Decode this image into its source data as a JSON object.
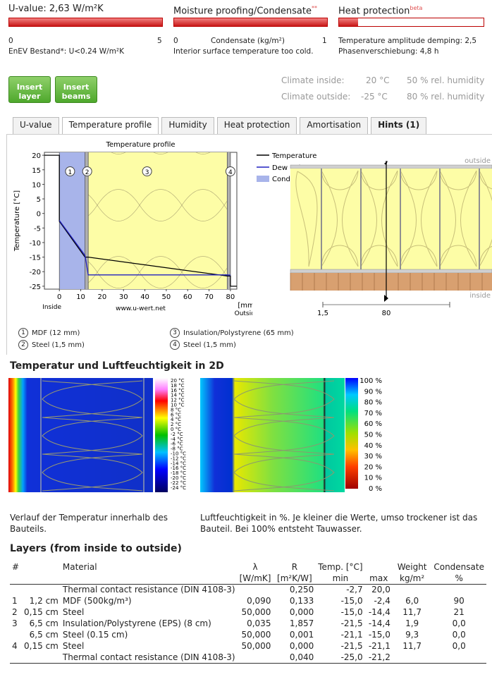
{
  "header": {
    "uvalue": {
      "title": "U-value: 2,63 W/m²K",
      "scale_min": "0",
      "scale_max": "5",
      "note": "EnEV Bestand*: U<0.24 W/m²K"
    },
    "moisture": {
      "title": "Moisture proofing/Condensate",
      "title_sup": "**",
      "scale_min": "0",
      "scale_mid": "Condensate (kg/m²)",
      "scale_max": "1",
      "note": "Interior surface temperature too cold."
    },
    "heat": {
      "title": "Heat protection",
      "title_sup": "beta",
      "line1": "Temperature amplitude demping: 2,5",
      "line2": "Phasenverschiebung: 4,8 h"
    }
  },
  "buttons": {
    "insert_layer": "Insert layer",
    "insert_beams": "Insert beams"
  },
  "climate": {
    "inside_label": "Climate inside:",
    "inside_temp": "20 °C",
    "inside_hum": "50 % rel. humidity",
    "outside_label": "Climate outside:",
    "outside_temp": "-25 °C",
    "outside_hum": "80 % rel. humidity"
  },
  "tabs": [
    "U-value",
    "Temperature profile",
    "Humidity",
    "Heat protection",
    "Amortisation",
    "Hints (1)"
  ],
  "chart_data": {
    "type": "line",
    "title": "Temperature profile",
    "xlabel": "[mm]",
    "ylabel": "Temperature [°C]",
    "xlim": [
      -7,
      83
    ],
    "ylim": [
      -26,
      21
    ],
    "x_ticks": [
      0,
      10,
      20,
      30,
      40,
      50,
      60,
      70,
      80
    ],
    "y_ticks": [
      20,
      15,
      10,
      5,
      0,
      -5,
      -10,
      -15,
      -20,
      -25
    ],
    "series": [
      {
        "name": "Temperature",
        "color": "#000000",
        "points": [
          [
            -7,
            20
          ],
          [
            0,
            20
          ],
          [
            0,
            -2.7
          ],
          [
            12,
            -15.0
          ],
          [
            13.5,
            -15.0
          ],
          [
            78.5,
            -21.5
          ],
          [
            80,
            -21.5
          ],
          [
            80,
            -25
          ],
          [
            83,
            -25
          ]
        ]
      },
      {
        "name": "Dew point",
        "color": "#2020c0",
        "points": [
          [
            0,
            -2.4
          ],
          [
            12,
            -14.4
          ],
          [
            13.5,
            -21.1
          ],
          [
            78.5,
            -21.1
          ],
          [
            80,
            -21.2
          ]
        ]
      }
    ],
    "legend": [
      "Temperature",
      "Dew point",
      "Condensate"
    ],
    "layer_markers": [
      "1",
      "2",
      "3",
      "4"
    ],
    "annot_inside": "Inside",
    "annot_outside": "Outside",
    "annot_site": "www.u-wert.net"
  },
  "cross": {
    "outside": "outside",
    "inside": "inside",
    "dim_left": "1,5",
    "dim_right": "80"
  },
  "layer_legend": [
    {
      "n": "1",
      "text": "MDF (12 mm)"
    },
    {
      "n": "2",
      "text": "Steel (1,5 mm)"
    },
    {
      "n": "3",
      "text": "Insulation/Polystyrene (65 mm)"
    },
    {
      "n": "4",
      "text": "Steel (1,5 mm)"
    }
  ],
  "twod": {
    "title": "Temperatur und Luftfeuchtigkeit in 2D",
    "temp_scale": [
      "20 °C",
      "18 °C",
      "16 °C",
      "14 °C",
      "12 °C",
      "10 °C",
      "8 °C",
      "6 °C",
      "4 °C",
      "2 °C",
      "0 °C",
      "-2 °C",
      "-4 °C",
      "-6 °C",
      "-8 °C",
      "-10 °C",
      "-12 °C",
      "-14 °C",
      "-16 °C",
      "-18 °C",
      "-20 °C",
      "-22 °C",
      "-24 °C"
    ],
    "hum_scale": [
      "100 %",
      "90 %",
      "80 %",
      "70 %",
      "60 %",
      "50 %",
      "40 %",
      "30 %",
      "20 %",
      "10 %",
      "0 %"
    ],
    "desc_temp": "Verlauf der Temperatur innerhalb des Bauteils.",
    "desc_hum": "Luftfeuchtigkeit in %. Je kleiner die Werte, umso trockener ist das Bauteil. Bei 100% entsteht Tauwasser."
  },
  "layers": {
    "title": "Layers (from inside to outside)",
    "head1": [
      "#",
      "",
      "Material",
      "λ",
      "R",
      "Temp. [°C]",
      "",
      "Weight",
      "Condensate"
    ],
    "head2": [
      "",
      "",
      "",
      "[W/mK]",
      "[m²K/W]",
      "min",
      "max",
      "kg/m²",
      "%"
    ],
    "rows": [
      [
        "",
        "",
        "Thermal contact resistance (DIN 4108-3)",
        "",
        "0,250",
        "-2,7",
        "20,0",
        "",
        ""
      ],
      [
        "1",
        "1,2 cm",
        "MDF (500kg/m³)",
        "0,090",
        "0,133",
        "-15,0",
        "-2,4",
        "6,0",
        "90"
      ],
      [
        "2",
        "0,15 cm",
        "Steel",
        "50,000",
        "0,000",
        "-15,0",
        "-14,4",
        "11,7",
        "21"
      ],
      [
        "3",
        "6,5 cm",
        "Insulation/Polystyrene (EPS) (8 cm)",
        "0,035",
        "1,857",
        "-21,5",
        "-14,4",
        "1,9",
        "0,0"
      ],
      [
        "",
        "6,5 cm",
        "Steel (0.15 cm)",
        "50,000",
        "0,001",
        "-21,1",
        "-15,0",
        "9,3",
        "0,0"
      ],
      [
        "4",
        "0,15 cm",
        "Steel",
        "50,000",
        "0,000",
        "-21,5",
        "-21,1",
        "11,7",
        "0,0"
      ],
      [
        "",
        "",
        "Thermal contact resistance (DIN 4108-3)",
        "",
        "0,040",
        "-25,0",
        "-21,2",
        "",
        ""
      ]
    ]
  }
}
